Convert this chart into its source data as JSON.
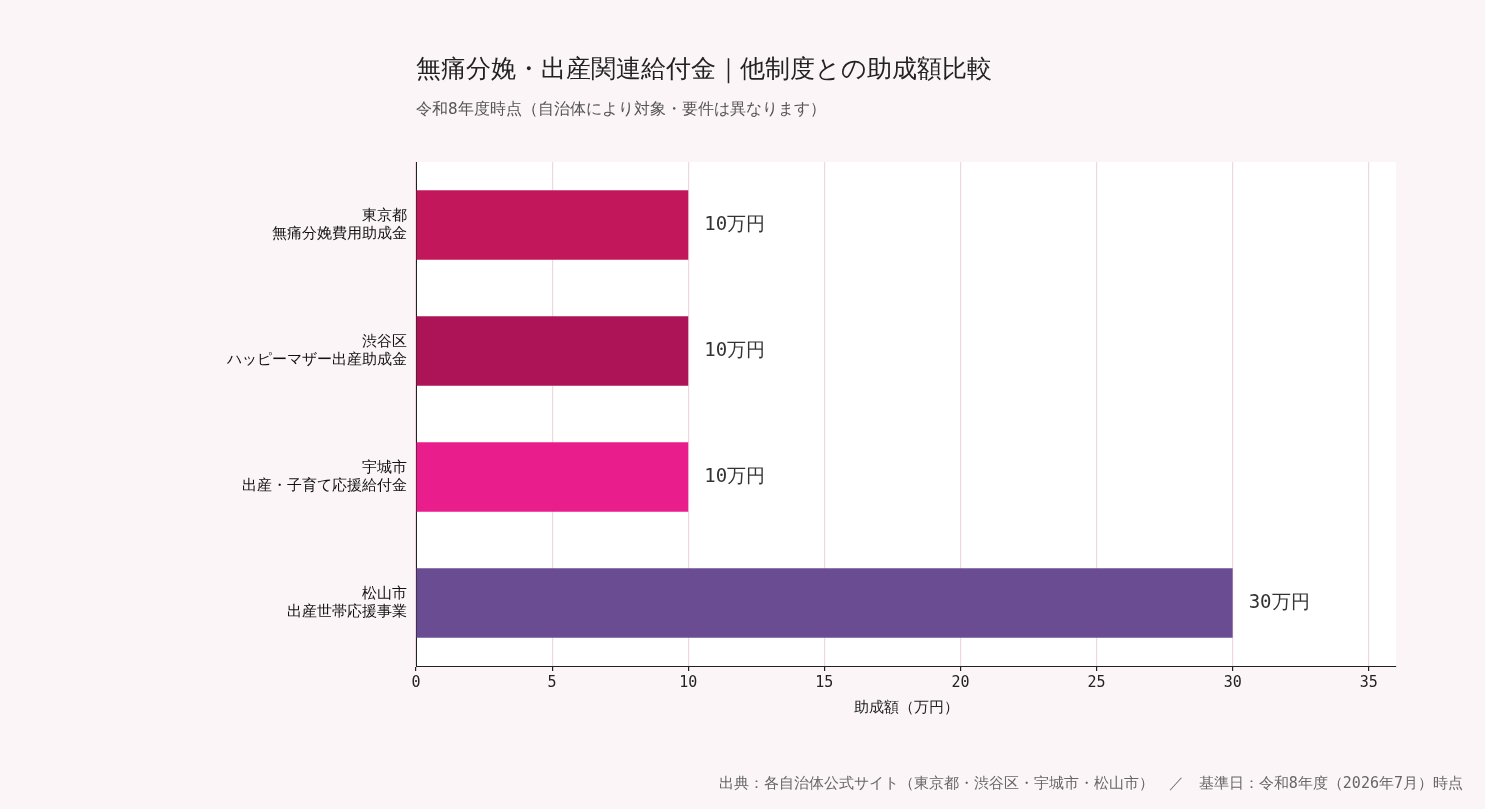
{
  "chart_data": {
    "type": "bar",
    "orientation": "horizontal",
    "title": "無痛分娩・出産関連給付金｜他制度との助成額比較",
    "subtitle": "令和8年度時点（自治体により対象・要件は異なります）",
    "xlabel": "助成額（万円）",
    "categories": [
      "東京都無痛分娩費用助成金",
      "渋谷区ハッピーマザー出産助成金",
      "宇城市出産・子育て応援給付金",
      "松山市出産世帯応援事業"
    ],
    "values": [
      10,
      10,
      10,
      30
    ],
    "colors": [
      "#c2185b",
      "#ad1457",
      "#e91e8c",
      "#6a4c93"
    ],
    "value_labels": [
      "10万円",
      "10万円",
      "10万円",
      "30万円"
    ],
    "xlim": [
      0,
      36
    ],
    "xticks": [
      0,
      5,
      10,
      15,
      20,
      25,
      30,
      35
    ],
    "grid": "x",
    "legend": false,
    "annotations": [
      "出典：各自治体公式サイト（東京都・渋谷区・宇城市・松山市）　／　基準日：令和8年度（2026年7月）時点"
    ]
  }
}
